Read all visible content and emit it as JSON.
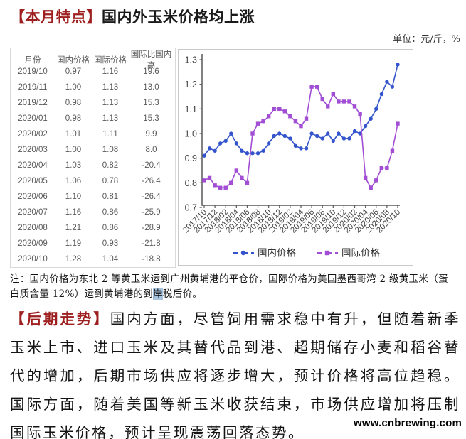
{
  "header": {
    "tag": "【本月特点】",
    "title": "国内外玉米价格均上涨",
    "unit_label": "单位：元/斤，%",
    "accent_color": "#9e1f1f"
  },
  "table": {
    "headers": [
      "月份",
      "国内价格",
      "国际价格",
      "国际比国内高"
    ],
    "rows": [
      [
        "2019/10",
        "0.97",
        "1.16",
        "19.6"
      ],
      [
        "2019/11",
        "1.00",
        "1.13",
        "13.0"
      ],
      [
        "2019/12",
        "0.98",
        "1.13",
        "15.3"
      ],
      [
        "2020/01",
        "0.98",
        "1.13",
        "15.3"
      ],
      [
        "2020/02",
        "1.01",
        "1.11",
        "9.9"
      ],
      [
        "2020/03",
        "1.00",
        "1.08",
        "8.0"
      ],
      [
        "2020/04",
        "1.03",
        "0.82",
        "-20.4"
      ],
      [
        "2020/05",
        "1.06",
        "0.78",
        "-26.4"
      ],
      [
        "2020/06",
        "1.10",
        "0.81",
        "-26.4"
      ],
      [
        "2020/07",
        "1.16",
        "0.86",
        "-25.9"
      ],
      [
        "2020/08",
        "1.21",
        "0.86",
        "-28.9"
      ],
      [
        "2020/09",
        "1.19",
        "0.93",
        "-21.8"
      ],
      [
        "2020/10",
        "1.28",
        "1.04",
        "-18.8"
      ]
    ]
  },
  "chart_data": {
    "type": "line",
    "x": [
      "2017/10",
      "2017/11",
      "2017/12",
      "2018/01",
      "2018/02",
      "2018/03",
      "2018/04",
      "2018/05",
      "2018/06",
      "2018/07",
      "2018/08",
      "2018/09",
      "2018/10",
      "2018/11",
      "2018/12",
      "2019/01",
      "2019/02",
      "2019/03",
      "2019/04",
      "2019/05",
      "2019/06",
      "2019/07",
      "2019/08",
      "2019/09",
      "2019/10",
      "2019/11",
      "2019/12",
      "2020/01",
      "2020/02",
      "2020/03",
      "2020/04",
      "2020/05",
      "2020/06",
      "2020/07",
      "2020/08",
      "2020/09",
      "2020/10"
    ],
    "x_tick_labels": [
      "2017/10",
      "2017/12",
      "2018/02",
      "2018/04",
      "2018/06",
      "2018/08",
      "2018/10",
      "2018/12",
      "2019/02",
      "2019/04",
      "2019/06",
      "2019/08",
      "2019/10",
      "2019/12",
      "2020/02",
      "2020/04",
      "2020/06",
      "2020/08",
      "2020/10"
    ],
    "series": [
      {
        "name": "国内价格",
        "marker": "circle",
        "color": "#3354cc",
        "values": [
          0.91,
          0.94,
          0.93,
          0.96,
          0.97,
          1.0,
          0.96,
          0.93,
          0.92,
          0.92,
          0.92,
          0.93,
          0.96,
          0.99,
          1.0,
          0.99,
          0.98,
          0.95,
          0.94,
          0.94,
          1.0,
          0.99,
          0.98,
          1.0,
          0.97,
          1.0,
          0.98,
          0.98,
          1.01,
          1.0,
          1.03,
          1.06,
          1.1,
          1.16,
          1.21,
          1.19,
          1.28
        ]
      },
      {
        "name": "国际价格",
        "marker": "square",
        "color": "#a24ed4",
        "values": [
          0.81,
          0.82,
          0.79,
          0.78,
          0.78,
          0.8,
          0.85,
          0.82,
          0.8,
          1.0,
          1.04,
          1.05,
          1.07,
          1.1,
          1.1,
          1.09,
          1.07,
          1.05,
          1.03,
          1.06,
          1.19,
          1.19,
          1.14,
          1.11,
          1.16,
          1.13,
          1.13,
          1.13,
          1.11,
          1.08,
          0.82,
          0.78,
          0.81,
          0.86,
          0.86,
          0.93,
          1.04
        ]
      }
    ],
    "ylim": [
      0.7,
      1.3
    ],
    "yticks": [
      "1.3",
      "1.2",
      "1.1",
      "1.0",
      "0.9",
      "0.8",
      "0.7"
    ],
    "grid": false,
    "legend_position": "bottom",
    "title": "",
    "xlabel": "",
    "ylabel": ""
  },
  "note": {
    "before_highlight": "注：国内价格为东北 2 等黄玉米运到广州黄埔港的平仓价，国际价格为美国墨西哥湾 2 级黄玉米（蛋白质含量 12%）运到黄埔港的到",
    "highlight": "岸",
    "after_highlight": "税后价。"
  },
  "outlook": {
    "tag": "【后期走势】",
    "body": "国内方面，尽管饲用需求稳中有升，但随着新季玉米上市、进口玉米及其替代品到港、超期储存小麦和稻谷替代的增加，后期市场供应将逐步增大，预计价格将高位趋稳。国际方面，随着美国等新玉米收获结束，市场供应增加将压制国际玉米价格，预计呈现震荡回落态势。"
  },
  "watermark": "www.cnbrewing.com"
}
